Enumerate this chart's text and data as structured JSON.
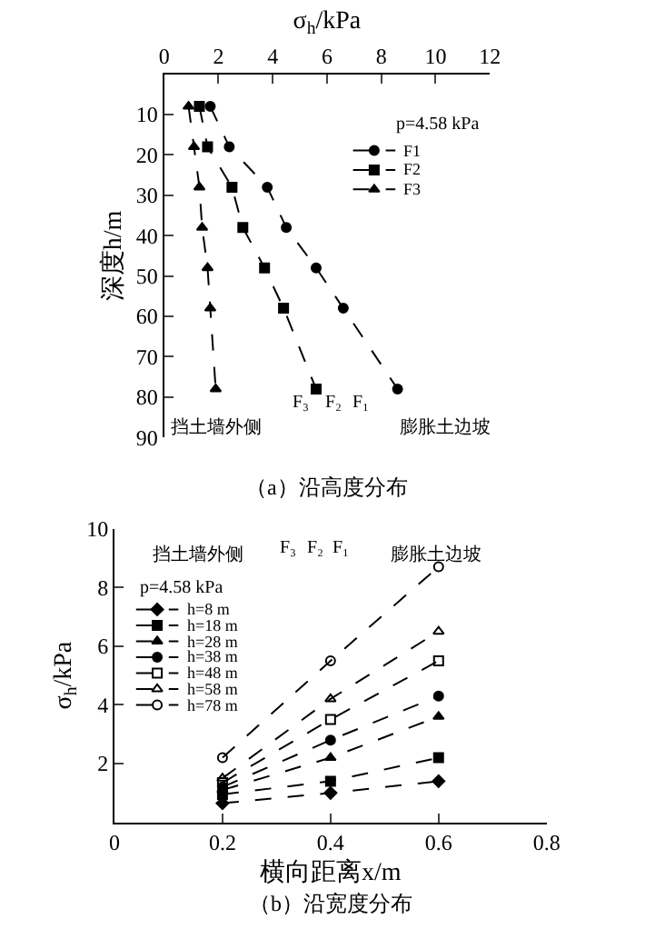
{
  "chart_data": [
    {
      "type": "line",
      "title": "（a）沿高度分布",
      "xlabel": "σ$_{h}$/kPa",
      "ylabel": "深度h/m",
      "orientation": "horizontal",
      "x": [
        8,
        18,
        28,
        38,
        48,
        58,
        78
      ],
      "series": [
        {
          "name": "F1",
          "color": "#000000",
          "marker": "circle",
          "values": [
            1.7,
            2.4,
            3.8,
            4.5,
            5.6,
            6.6,
            8.6
          ]
        },
        {
          "name": "F2",
          "color": "#000000",
          "marker": "square",
          "values": [
            1.3,
            1.6,
            2.5,
            2.9,
            3.7,
            4.4,
            5.6
          ]
        },
        {
          "name": "F3",
          "color": "#000000",
          "marker": "triangle",
          "values": [
            0.9,
            1.1,
            1.3,
            1.4,
            1.6,
            1.7,
            1.9
          ]
        }
      ],
      "xlim": [
        0,
        12
      ],
      "xticks": [
        0,
        2,
        4,
        6,
        8,
        10,
        12
      ],
      "ylim": [
        90,
        0
      ],
      "yticks": [
        10,
        20,
        30,
        40,
        50,
        60,
        70,
        80,
        90
      ],
      "line_style": "dashed",
      "grid": false,
      "legend": "top right",
      "annotations": [
        "p=4.58 kPa",
        "挡土墙外侧",
        "F₃",
        "F₂",
        "F₁",
        "膨胀土边坡"
      ]
    },
    {
      "type": "line",
      "title": "（b）沿宽度分布",
      "xlabel": "横向距离x/m",
      "ylabel": "σ$_{h}$/kPa",
      "x": [
        0.2,
        0.4,
        0.6
      ],
      "series": [
        {
          "name": "h=8 m",
          "color": "#000000",
          "marker": "diamond",
          "values": [
            0.65,
            1.0,
            1.4
          ]
        },
        {
          "name": "h=18 m",
          "color": "#000000",
          "marker": "square",
          "values": [
            0.95,
            1.4,
            2.2
          ]
        },
        {
          "name": "h=28 m",
          "color": "#000000",
          "marker": "triangle",
          "values": [
            1.1,
            2.2,
            3.6
          ]
        },
        {
          "name": "h=38 m",
          "color": "#000000",
          "marker": "circle",
          "values": [
            1.2,
            2.8,
            4.3
          ]
        },
        {
          "name": "h=48 m",
          "color": "#000000",
          "marker": "square-open",
          "values": [
            1.35,
            3.5,
            5.5
          ]
        },
        {
          "name": "h=58 m",
          "color": "#000000",
          "marker": "triangle-open",
          "values": [
            1.5,
            4.2,
            6.5
          ]
        },
        {
          "name": "h=78 m",
          "color": "#000000",
          "marker": "circle-open",
          "values": [
            2.2,
            5.5,
            8.7
          ]
        }
      ],
      "xlim": [
        0,
        0.8
      ],
      "xticks": [
        0,
        0.2,
        0.4,
        0.6,
        0.8
      ],
      "ylim": [
        0,
        10
      ],
      "yticks": [
        2,
        4,
        6,
        8,
        10
      ],
      "line_style": "dashed",
      "grid": false,
      "legend": "top left",
      "annotations": [
        "挡土墙外侧",
        "F₃",
        "F₂",
        "F₁",
        "膨胀土边坡",
        "p=4.58 kPa"
      ]
    }
  ]
}
